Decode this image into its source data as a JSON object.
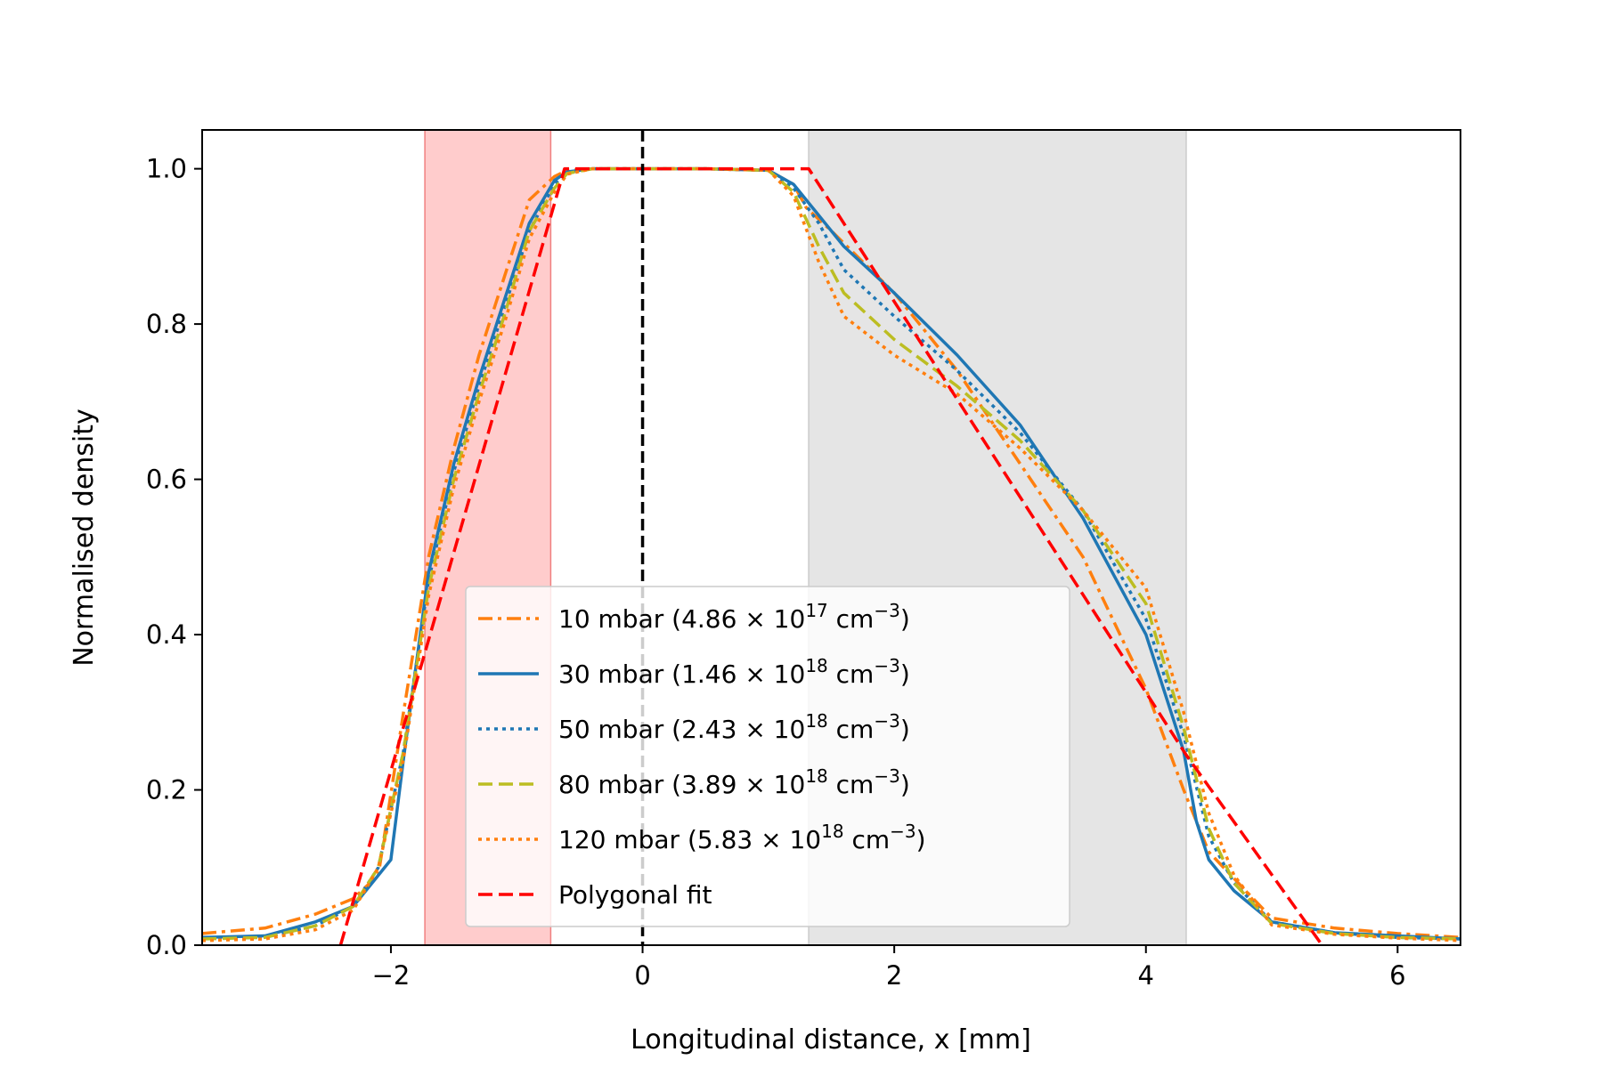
{
  "chart_data": {
    "type": "line",
    "title": "",
    "xlabel": "Longitudinal distance, x [mm]",
    "ylabel": "Normalised density",
    "xlim": [
      -3.5,
      6.5
    ],
    "ylim": [
      0.0,
      1.05
    ],
    "xticks": [
      -2,
      0,
      2,
      4,
      6
    ],
    "xtick_labels": [
      "−2",
      "0",
      "2",
      "4",
      "6"
    ],
    "yticks": [
      0.0,
      0.2,
      0.4,
      0.6,
      0.8,
      1.0
    ],
    "ytick_labels": [
      "0.0",
      "0.2",
      "0.4",
      "0.6",
      "0.8",
      "1.0"
    ],
    "grid": false,
    "legend_position": "lower-center",
    "shaded_regions": [
      {
        "x_start": -1.73,
        "x_end": -0.73,
        "fill": "#ffcccc",
        "edge": "#f08080"
      },
      {
        "x_start": 1.32,
        "x_end": 4.32,
        "fill": "#e5e5e5",
        "edge": "#cccccc"
      }
    ],
    "vertical_line": {
      "x": 0,
      "color": "#000000",
      "style": "dashed"
    },
    "series": [
      {
        "name": "10 mbar (4.86 × 10^17 cm^−3)",
        "legend_main": "10 mbar (4.86 × 10",
        "legend_exp": "17",
        "legend_unit": " cm",
        "legend_unit_exp": "−3",
        "legend_close": ")",
        "color": "#ff7f0e",
        "style": "dashdot",
        "x": [
          -3.5,
          -3.0,
          -2.6,
          -2.3,
          -2.1,
          -1.9,
          -1.7,
          -1.5,
          -1.3,
          -1.1,
          -0.9,
          -0.7,
          -0.6,
          -0.4,
          0.0,
          0.5,
          1.0,
          1.2,
          1.3,
          1.5,
          2.0,
          2.5,
          3.0,
          3.5,
          4.0,
          4.3,
          4.5,
          5.0,
          5.5,
          6.0,
          6.5
        ],
        "y": [
          0.015,
          0.022,
          0.04,
          0.06,
          0.09,
          0.3,
          0.5,
          0.64,
          0.76,
          0.86,
          0.96,
          0.99,
          0.998,
          1.0,
          1.0,
          1.0,
          0.998,
          0.98,
          0.95,
          0.92,
          0.84,
          0.74,
          0.62,
          0.5,
          0.33,
          0.2,
          0.12,
          0.035,
          0.022,
          0.015,
          0.01
        ]
      },
      {
        "name": "30 mbar (1.46 × 10^18 cm^−3)",
        "legend_main": "30 mbar (1.46 × 10",
        "legend_exp": "18",
        "legend_unit": " cm",
        "legend_unit_exp": "−3",
        "legend_close": ")",
        "color": "#1f77b4",
        "style": "solid",
        "x": [
          -3.5,
          -3.0,
          -2.6,
          -2.3,
          -2.1,
          -2.0,
          -1.9,
          -1.7,
          -1.5,
          -1.3,
          -1.1,
          -0.9,
          -0.7,
          -0.6,
          -0.4,
          0.0,
          0.5,
          1.0,
          1.2,
          1.4,
          1.6,
          2.0,
          2.5,
          3.0,
          3.5,
          4.0,
          4.3,
          4.4,
          4.5,
          4.7,
          5.0,
          5.5,
          6.0,
          6.5
        ],
        "y": [
          0.01,
          0.012,
          0.03,
          0.05,
          0.09,
          0.11,
          0.24,
          0.48,
          0.62,
          0.73,
          0.83,
          0.93,
          0.985,
          0.996,
          1.0,
          1.0,
          1.0,
          0.998,
          0.98,
          0.94,
          0.9,
          0.84,
          0.76,
          0.67,
          0.55,
          0.4,
          0.25,
          0.16,
          0.11,
          0.07,
          0.03,
          0.016,
          0.012,
          0.008
        ]
      },
      {
        "name": "50 mbar (2.43 × 10^18 cm^−3)",
        "legend_main": "50 mbar (2.43 × 10",
        "legend_exp": "18",
        "legend_unit": " cm",
        "legend_unit_exp": "−3",
        "legend_close": ")",
        "color": "#1f77b4",
        "style": "dotted",
        "x": [
          -3.5,
          -3.0,
          -2.6,
          -2.3,
          -2.1,
          -1.9,
          -1.7,
          -1.5,
          -1.3,
          -1.1,
          -0.9,
          -0.7,
          -0.6,
          -0.4,
          0.0,
          0.5,
          1.0,
          1.2,
          1.4,
          1.6,
          2.0,
          2.5,
          3.0,
          3.5,
          4.0,
          4.3,
          4.5,
          4.7,
          5.0,
          5.5,
          6.0,
          6.5
        ],
        "y": [
          0.008,
          0.01,
          0.025,
          0.05,
          0.1,
          0.25,
          0.47,
          0.61,
          0.72,
          0.82,
          0.92,
          0.98,
          0.995,
          1.0,
          1.0,
          1.0,
          0.998,
          0.975,
          0.93,
          0.87,
          0.81,
          0.74,
          0.66,
          0.56,
          0.42,
          0.27,
          0.14,
          0.08,
          0.03,
          0.016,
          0.01,
          0.008
        ]
      },
      {
        "name": "80 mbar (3.89 × 10^18 cm^−3)",
        "legend_main": "80 mbar (3.89 × 10",
        "legend_exp": "18",
        "legend_unit": " cm",
        "legend_unit_exp": "−3",
        "legend_close": ")",
        "color": "#bcbd22",
        "style": "dashed",
        "x": [
          -3.5,
          -3.0,
          -2.6,
          -2.3,
          -2.1,
          -1.9,
          -1.7,
          -1.5,
          -1.3,
          -1.1,
          -0.9,
          -0.7,
          -0.6,
          -0.4,
          0.0,
          0.5,
          1.0,
          1.2,
          1.4,
          1.6,
          2.0,
          2.5,
          3.0,
          3.5,
          4.0,
          4.3,
          4.5,
          4.7,
          5.0,
          5.5,
          6.0,
          6.5
        ],
        "y": [
          0.008,
          0.01,
          0.025,
          0.05,
          0.1,
          0.25,
          0.46,
          0.6,
          0.71,
          0.81,
          0.92,
          0.975,
          0.994,
          1.0,
          1.0,
          1.0,
          0.998,
          0.97,
          0.9,
          0.84,
          0.78,
          0.72,
          0.65,
          0.56,
          0.44,
          0.28,
          0.15,
          0.08,
          0.028,
          0.015,
          0.01,
          0.008
        ]
      },
      {
        "name": "120 mbar (5.83 × 10^18 cm^−3)",
        "legend_main": "120 mbar (5.83 × 10",
        "legend_exp": "18",
        "legend_unit": " cm",
        "legend_unit_exp": "−3",
        "legend_close": ")",
        "color": "#ff7f0e",
        "style": "dotted",
        "x": [
          -3.5,
          -3.0,
          -2.6,
          -2.3,
          -2.1,
          -1.9,
          -1.7,
          -1.5,
          -1.3,
          -1.1,
          -0.9,
          -0.7,
          -0.6,
          -0.4,
          0.0,
          0.5,
          1.0,
          1.2,
          1.4,
          1.6,
          2.0,
          2.5,
          3.0,
          3.5,
          4.0,
          4.3,
          4.5,
          4.7,
          5.0,
          5.5,
          6.0,
          6.5
        ],
        "y": [
          0.006,
          0.008,
          0.02,
          0.045,
          0.1,
          0.24,
          0.45,
          0.59,
          0.7,
          0.8,
          0.91,
          0.97,
          0.993,
          1.0,
          1.0,
          1.0,
          0.998,
          0.965,
          0.88,
          0.81,
          0.76,
          0.71,
          0.64,
          0.56,
          0.46,
          0.3,
          0.17,
          0.09,
          0.026,
          0.014,
          0.009,
          0.006
        ]
      },
      {
        "name": "Polygonal fit",
        "legend_main": "Polygonal fit",
        "legend_exp": "",
        "legend_unit": "",
        "legend_unit_exp": "",
        "legend_close": "",
        "color": "#ff0000",
        "style": "dashed",
        "x": [
          -2.4,
          -0.62,
          1.2,
          1.32,
          4.32,
          5.4
        ],
        "y": [
          0.0,
          1.0,
          1.0,
          1.0,
          0.245,
          0.0
        ]
      }
    ]
  }
}
